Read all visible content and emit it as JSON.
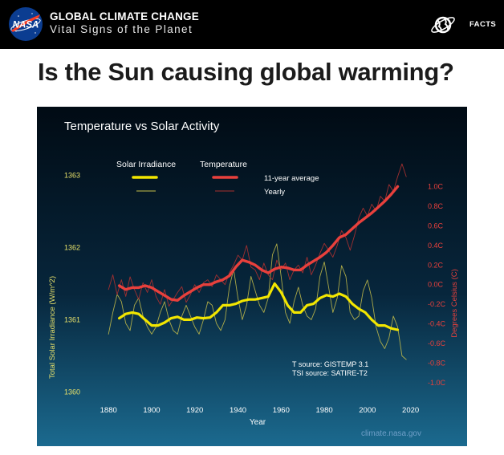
{
  "header": {
    "logo_text": "NASA",
    "title": "GLOBAL CLIMATE CHANGE",
    "subtitle": "Vital Signs of the Planet",
    "facts_label": "FACTS"
  },
  "page": {
    "title": "Is the Sun causing global warming?"
  },
  "colors": {
    "irradiance": "#f2e600",
    "temperature": "#e8403c",
    "left_axis": "#e6e06a",
    "right_axis": "#e8403c",
    "credit": "#6f9fc8"
  },
  "chart_data": {
    "type": "line",
    "title": "Temperature vs Solar Activity",
    "xlabel": "Year",
    "ylabel_left": "Total Solar Irradiance (W/m^2)",
    "ylabel_right": "Degrees Celsius (C)",
    "x_ticks": [
      1880,
      1900,
      1920,
      1940,
      1960,
      1980,
      2000,
      2020
    ],
    "xlim": [
      1871,
      2022
    ],
    "left_ticks": [
      "1363",
      "1362",
      "1361",
      "1360"
    ],
    "left_tick_values": [
      1363,
      1362,
      1361,
      1360
    ],
    "ylim_left": [
      1359.95,
      1363.17
    ],
    "right_ticks": [
      "1.0C",
      "0.8C",
      "0.6C",
      "0.4C",
      "0.2C",
      "0.0C",
      "-0.2C",
      "-0.4C",
      "-0.6C",
      "-0.8C",
      "-1.0C"
    ],
    "right_tick_values": [
      1.0,
      0.8,
      0.6,
      0.4,
      0.2,
      0.0,
      -0.2,
      -0.4,
      -0.6,
      -0.8,
      -1.0
    ],
    "ylim_right": [
      -1.13,
      1.24
    ],
    "legend": {
      "irradiance_header": "Solar Irradiance",
      "temperature_header": "Temperature",
      "smooth_label": "11-year average",
      "yearly_label": "Yearly"
    },
    "sources": [
      "T source: GISTEMP 3.1",
      "TSI source: SATIRE-T2"
    ],
    "credit": "climate.nasa.gov",
    "series": [
      {
        "name": "Solar Irradiance 11-year average",
        "axis": "left",
        "x": [
          1885,
          1888,
          1891,
          1894,
          1897,
          1900,
          1903,
          1906,
          1909,
          1912,
          1915,
          1918,
          1921,
          1924,
          1927,
          1930,
          1933,
          1936,
          1939,
          1942,
          1945,
          1948,
          1951,
          1954,
          1957,
          1960,
          1963,
          1966,
          1969,
          1972,
          1975,
          1978,
          1981,
          1984,
          1987,
          1990,
          1993,
          1996,
          1999,
          2002,
          2005,
          2008,
          2011,
          2014
        ],
        "values": [
          1361.02,
          1361.08,
          1361.1,
          1361.08,
          1361.0,
          1360.92,
          1360.92,
          1360.96,
          1361.02,
          1361.04,
          1361.0,
          1361.0,
          1361.03,
          1361.02,
          1361.03,
          1361.1,
          1361.2,
          1361.2,
          1361.22,
          1361.26,
          1361.28,
          1361.28,
          1361.3,
          1361.32,
          1361.5,
          1361.38,
          1361.2,
          1361.1,
          1361.1,
          1361.2,
          1361.22,
          1361.3,
          1361.34,
          1361.32,
          1361.36,
          1361.32,
          1361.22,
          1361.15,
          1361.1,
          1361.0,
          1360.92,
          1360.92,
          1360.88,
          1360.86
        ]
      },
      {
        "name": "Solar Irradiance yearly",
        "axis": "left",
        "x": [
          1880,
          1882,
          1884,
          1886,
          1888,
          1890,
          1892,
          1894,
          1896,
          1898,
          1900,
          1902,
          1904,
          1906,
          1908,
          1910,
          1912,
          1914,
          1916,
          1918,
          1920,
          1922,
          1924,
          1926,
          1928,
          1930,
          1932,
          1934,
          1936,
          1938,
          1940,
          1942,
          1944,
          1946,
          1948,
          1950,
          1952,
          1954,
          1956,
          1958,
          1960,
          1962,
          1964,
          1966,
          1968,
          1970,
          1972,
          1974,
          1976,
          1978,
          1980,
          1982,
          1984,
          1986,
          1988,
          1990,
          1992,
          1994,
          1996,
          1998,
          2000,
          2002,
          2004,
          2006,
          2008,
          2010,
          2012,
          2014,
          2016,
          2018
        ],
        "values": [
          1360.8,
          1361.1,
          1361.35,
          1361.25,
          1360.95,
          1360.85,
          1361.2,
          1361.3,
          1361.05,
          1360.9,
          1360.8,
          1360.9,
          1361.1,
          1361.25,
          1361.0,
          1360.85,
          1360.8,
          1361.05,
          1361.2,
          1361.05,
          1360.9,
          1360.8,
          1361.0,
          1361.25,
          1361.2,
          1360.95,
          1360.85,
          1361.0,
          1361.45,
          1361.7,
          1361.3,
          1361.0,
          1361.2,
          1361.6,
          1361.4,
          1361.2,
          1361.1,
          1361.3,
          1361.9,
          1362.05,
          1361.6,
          1361.1,
          1360.95,
          1361.25,
          1361.45,
          1361.2,
          1361.05,
          1361.0,
          1361.15,
          1361.6,
          1361.8,
          1361.45,
          1361.1,
          1361.3,
          1361.75,
          1361.6,
          1361.1,
          1361.0,
          1361.05,
          1361.4,
          1361.55,
          1361.3,
          1360.9,
          1360.7,
          1360.6,
          1360.75,
          1361.05,
          1360.9,
          1360.5,
          1360.45
        ]
      },
      {
        "name": "Temperature 11-year average",
        "axis": "right",
        "x": [
          1885,
          1888,
          1891,
          1894,
          1897,
          1900,
          1903,
          1906,
          1909,
          1912,
          1915,
          1918,
          1921,
          1924,
          1927,
          1930,
          1933,
          1936,
          1939,
          1942,
          1945,
          1948,
          1951,
          1954,
          1957,
          1960,
          1963,
          1966,
          1969,
          1972,
          1975,
          1978,
          1981,
          1984,
          1987,
          1990,
          1993,
          1996,
          1999,
          2002,
          2005,
          2008,
          2011,
          2014
        ],
        "values": [
          -0.01,
          -0.05,
          -0.03,
          -0.03,
          -0.01,
          -0.03,
          -0.07,
          -0.11,
          -0.15,
          -0.16,
          -0.11,
          -0.07,
          -0.03,
          0.0,
          0.0,
          0.03,
          0.05,
          0.09,
          0.18,
          0.25,
          0.23,
          0.2,
          0.15,
          0.12,
          0.16,
          0.18,
          0.17,
          0.15,
          0.15,
          0.2,
          0.24,
          0.28,
          0.33,
          0.4,
          0.48,
          0.51,
          0.57,
          0.63,
          0.68,
          0.73,
          0.79,
          0.85,
          0.92,
          1.0
        ]
      },
      {
        "name": "Temperature yearly",
        "axis": "right",
        "x": [
          1880,
          1882,
          1884,
          1886,
          1888,
          1890,
          1892,
          1894,
          1896,
          1898,
          1900,
          1902,
          1904,
          1906,
          1908,
          1910,
          1912,
          1914,
          1916,
          1918,
          1920,
          1922,
          1924,
          1926,
          1928,
          1930,
          1932,
          1934,
          1936,
          1938,
          1940,
          1942,
          1944,
          1946,
          1948,
          1950,
          1952,
          1954,
          1956,
          1958,
          1960,
          1962,
          1964,
          1966,
          1968,
          1970,
          1972,
          1974,
          1976,
          1978,
          1980,
          1982,
          1984,
          1986,
          1988,
          1990,
          1992,
          1994,
          1996,
          1998,
          2000,
          2002,
          2004,
          2006,
          2008,
          2010,
          2012,
          2014,
          2016,
          2018
        ],
        "values": [
          -0.05,
          0.1,
          -0.1,
          0.05,
          -0.12,
          0.08,
          -0.05,
          -0.15,
          0.02,
          -0.08,
          0.05,
          -0.12,
          -0.2,
          -0.05,
          -0.22,
          -0.15,
          -0.08,
          -0.02,
          -0.18,
          -0.1,
          0.0,
          -0.08,
          0.02,
          0.05,
          -0.02,
          0.1,
          0.05,
          0.0,
          0.12,
          0.2,
          0.3,
          0.25,
          0.4,
          0.18,
          0.15,
          0.05,
          0.22,
          0.1,
          0.05,
          0.25,
          0.15,
          0.22,
          0.05,
          0.15,
          0.2,
          0.12,
          0.28,
          0.1,
          0.2,
          0.32,
          0.42,
          0.35,
          0.28,
          0.4,
          0.55,
          0.48,
          0.35,
          0.5,
          0.68,
          0.78,
          0.7,
          0.82,
          0.75,
          0.9,
          0.85,
          1.02,
          0.95,
          1.1,
          1.23,
          1.1
        ]
      }
    ]
  }
}
